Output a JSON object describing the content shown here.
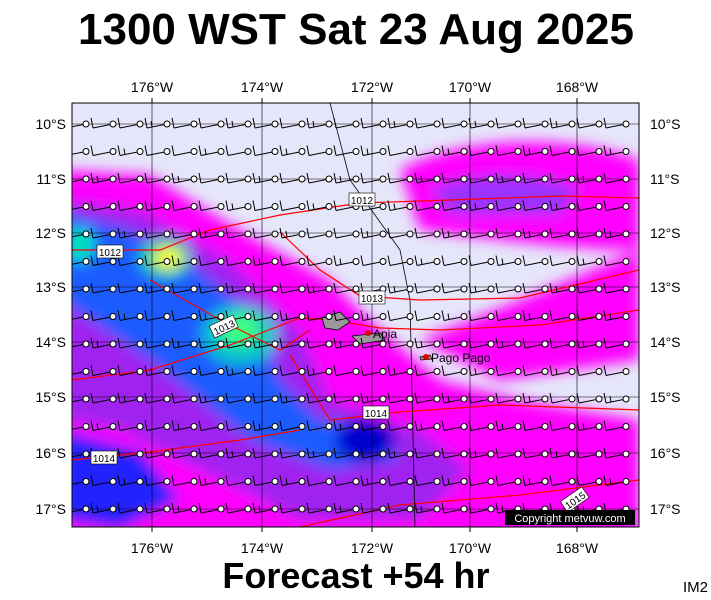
{
  "title": "1300 WST Sat 23 Aug 2025",
  "footer": "Forecast +54 hr",
  "corner_code": "IM2",
  "map": {
    "longitude_labels": [
      "176°W",
      "174°W",
      "172°W",
      "170°W",
      "168°W"
    ],
    "latitude_labels": [
      "10°S",
      "11°S",
      "12°S",
      "13°S",
      "14°S",
      "15°S",
      "16°S",
      "17°S"
    ],
    "isobar_labels": [
      "1012",
      "1012",
      "1013",
      "1013",
      "1014",
      "1014",
      "1015"
    ],
    "places": [
      "Apia",
      "Pago Pago"
    ],
    "copyright": "Copyright metvuw.com"
  }
}
